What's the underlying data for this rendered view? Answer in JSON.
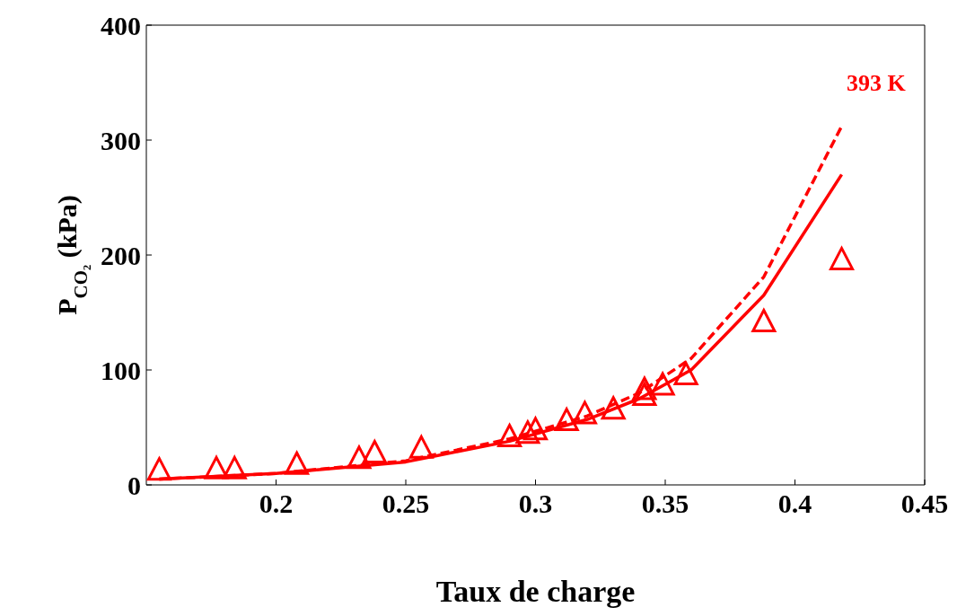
{
  "chart_data": {
    "type": "line",
    "xlabel": "Taux de charge",
    "ylabel": "P$_{CO₂}$ (kPa)",
    "xlim": [
      0.15,
      0.45
    ],
    "xticks": [
      0.2,
      0.25,
      0.3,
      0.35,
      0.4,
      0.45
    ],
    "ylim": [
      0,
      400
    ],
    "yticks": [
      0,
      100,
      200,
      300,
      400
    ],
    "grid": false,
    "legend": false,
    "annotations": [
      "393 K"
    ],
    "series": [
      {
        "type": "scatter",
        "color": "#ff0000",
        "marker": "triangle",
        "x": [
          0.155,
          0.177,
          0.184,
          0.208,
          0.232,
          0.238,
          0.256,
          0.29,
          0.297,
          0.3,
          0.312,
          0.319,
          0.33,
          0.342,
          0.342,
          0.349,
          0.358,
          0.388,
          0.418
        ],
        "values": [
          12,
          13,
          13,
          17,
          22,
          27,
          31,
          41,
          44,
          47,
          55,
          61,
          65,
          77,
          82,
          86,
          95,
          141,
          195
        ]
      },
      {
        "color": "#ff0000",
        "line_style": "solid",
        "marker": "none",
        "x": [
          0.155,
          0.2,
          0.25,
          0.29,
          0.32,
          0.34,
          0.36,
          0.388,
          0.418
        ],
        "values": [
          5,
          10,
          20,
          38,
          57,
          75,
          100,
          165,
          270
        ]
      },
      {
        "color": "#ff0000",
        "line_style": "dashed",
        "marker": "none",
        "x": [
          0.155,
          0.2,
          0.25,
          0.29,
          0.32,
          0.34,
          0.36,
          0.388,
          0.418
        ],
        "values": [
          5,
          10,
          21,
          40,
          60,
          80,
          110,
          181,
          312
        ]
      }
    ]
  }
}
